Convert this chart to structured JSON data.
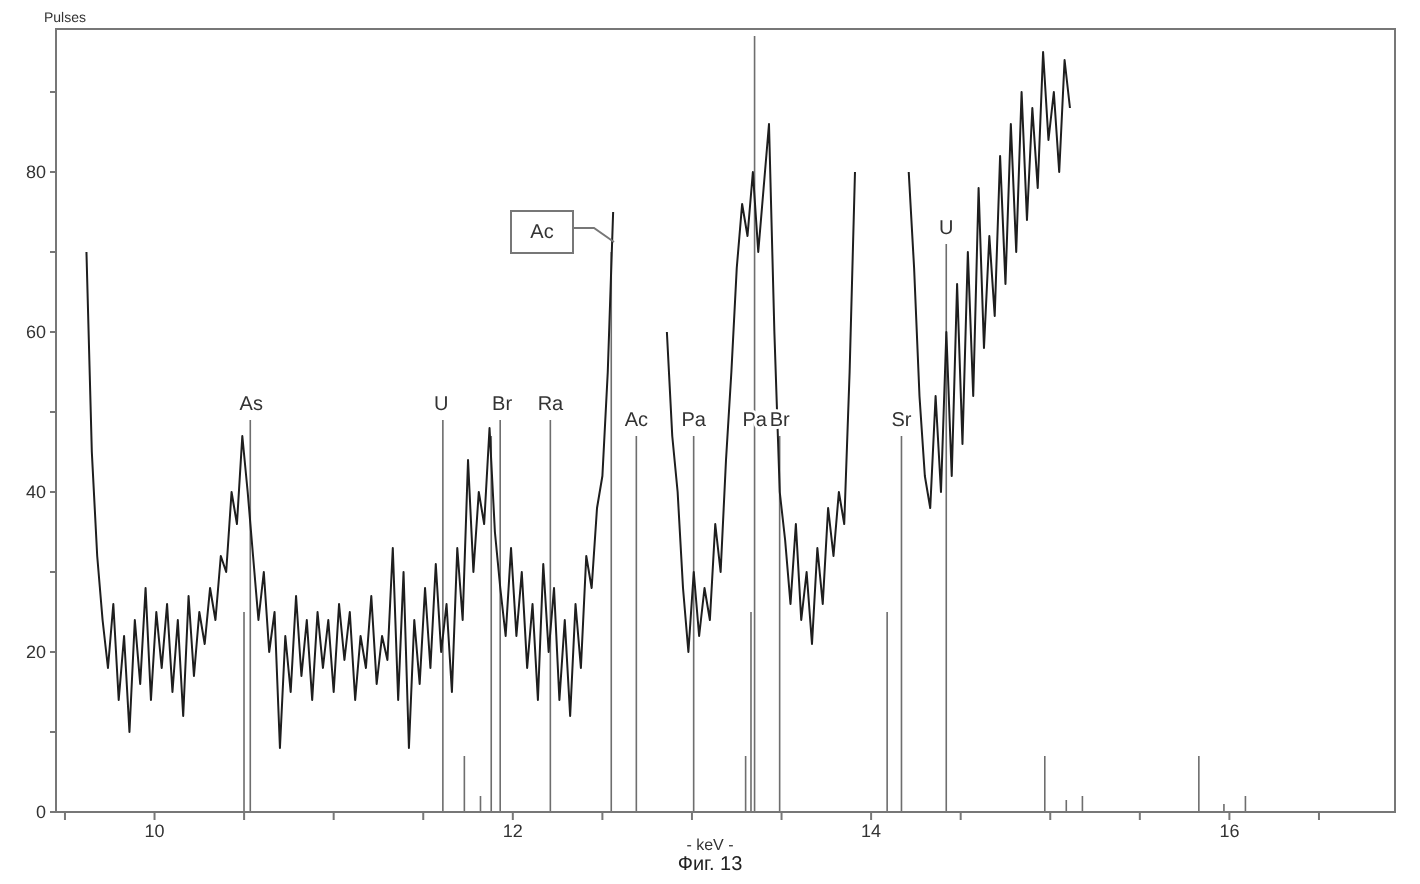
{
  "chart_data": {
    "type": "line",
    "title": "Фиг. 13",
    "xlabel": "- keV -",
    "ylabel": "Pulses",
    "xlim": [
      9.45,
      16.93
    ],
    "xticks": [
      {
        "value": 9.5,
        "label": null
      },
      10,
      {
        "value": 10.5,
        "label": null
      },
      {
        "value": 11,
        "label": null
      },
      {
        "value": 11.5,
        "label": null
      },
      12,
      {
        "value": 12.5,
        "label": null
      },
      {
        "value": 13,
        "label": null
      },
      {
        "value": 13.5,
        "label": null
      },
      14,
      {
        "value": 14.5,
        "label": null
      },
      {
        "value": 15,
        "label": null
      },
      {
        "value": 15.5,
        "label": null
      },
      16,
      {
        "value": 16.5,
        "label": null
      }
    ],
    "ylim": [
      0,
      98
    ],
    "yticks": [
      0,
      {
        "value": 10,
        "label": null
      },
      20,
      {
        "value": 30,
        "label": null
      },
      40,
      {
        "value": 50,
        "label": null
      },
      60,
      {
        "value": 70,
        "label": null
      },
      80,
      {
        "value": 90,
        "label": null
      }
    ],
    "grid": false,
    "legend": false,
    "marker": "none",
    "line_style": "solid",
    "series": [
      {
        "color": "#1e1e1e",
        "x": [
          9.62,
          9.65,
          9.68,
          9.71,
          9.74,
          9.77,
          9.8,
          9.83,
          9.86,
          9.89,
          9.92,
          9.95,
          9.98,
          10.01,
          10.04,
          10.07,
          10.1,
          10.13,
          10.16,
          10.19,
          10.22,
          10.25,
          10.28,
          10.31,
          10.34,
          10.37,
          10.4,
          10.43,
          10.46,
          10.49,
          10.52,
          10.55,
          10.58,
          10.61,
          10.64,
          10.67,
          10.7,
          10.73,
          10.76,
          10.79,
          10.82,
          10.85,
          10.88,
          10.91,
          10.94,
          10.97,
          11.0,
          11.03,
          11.06,
          11.09,
          11.12,
          11.15,
          11.18,
          11.21,
          11.24,
          11.27,
          11.3,
          11.33,
          11.36,
          11.39,
          11.42,
          11.45,
          11.48,
          11.51,
          11.54,
          11.57,
          11.6,
          11.63,
          11.66,
          11.69,
          11.72,
          11.75,
          11.78,
          11.81,
          11.84,
          11.87,
          11.9,
          11.93,
          11.96,
          11.99,
          12.02,
          12.05,
          12.08,
          12.11,
          12.14,
          12.17,
          12.2,
          12.23,
          12.26,
          12.29,
          12.32,
          12.35,
          12.38,
          12.41,
          12.44,
          12.47,
          12.5,
          12.53,
          12.56,
          12.58,
          12.62,
          12.83,
          12.86,
          12.89,
          12.92,
          12.95,
          12.98,
          13.01,
          13.04,
          13.07,
          13.1,
          13.13,
          13.16,
          13.19,
          13.22,
          13.25,
          13.28,
          13.31,
          13.34,
          13.37,
          13.4,
          13.43,
          13.46,
          13.49,
          13.52,
          13.55,
          13.58,
          13.61,
          13.64,
          13.67,
          13.7,
          13.73,
          13.76,
          13.79,
          13.82,
          13.85,
          13.88,
          13.91,
          13.94,
          14.18,
          14.21,
          14.24,
          14.27,
          14.3,
          14.33,
          14.36,
          14.39,
          14.42,
          14.45,
          14.48,
          14.51,
          14.54,
          14.57,
          14.6,
          14.63,
          14.66,
          14.69,
          14.72,
          14.75,
          14.78,
          14.81,
          14.84,
          14.87,
          14.9,
          14.93,
          14.96,
          14.99,
          15.02,
          15.05,
          15.08,
          15.11
        ],
        "values": [
          70,
          45,
          32,
          24,
          18,
          26,
          14,
          22,
          10,
          24,
          16,
          28,
          14,
          25,
          18,
          26,
          15,
          24,
          12,
          27,
          17,
          25,
          21,
          28,
          24,
          32,
          30,
          40,
          36,
          47,
          40,
          32,
          24,
          30,
          20,
          25,
          8,
          22,
          15,
          27,
          17,
          24,
          14,
          25,
          18,
          24,
          15,
          26,
          19,
          25,
          14,
          22,
          18,
          27,
          16,
          22,
          19,
          33,
          14,
          30,
          8,
          24,
          16,
          28,
          18,
          31,
          20,
          26,
          15,
          33,
          24,
          44,
          30,
          40,
          36,
          48,
          35,
          28,
          22,
          33,
          22,
          30,
          18,
          26,
          14,
          31,
          20,
          28,
          14,
          24,
          12,
          26,
          18,
          32,
          28,
          38,
          42,
          55,
          75,
          null,
          null,
          null,
          60,
          47,
          40,
          28,
          20,
          30,
          22,
          28,
          24,
          36,
          30,
          44,
          55,
          68,
          76,
          72,
          80,
          70,
          78,
          86,
          60,
          40,
          34,
          26,
          36,
          24,
          30,
          21,
          33,
          26,
          38,
          32,
          40,
          36,
          55,
          80,
          null,
          null,
          80,
          68,
          52,
          42,
          38,
          52,
          40,
          60,
          42,
          66,
          46,
          70,
          52,
          78,
          58,
          72,
          62,
          82,
          66,
          86,
          70,
          90,
          74,
          88,
          78,
          95,
          84,
          90,
          80,
          94,
          88
        ]
      },
      {
        "type": "bar",
        "color": "#6e6e6e",
        "x": [
          10.5,
          10.535,
          11.61,
          11.73,
          11.82,
          11.88,
          11.93,
          12.21,
          12.55,
          12.69,
          13.01,
          13.3,
          13.33,
          13.35,
          13.49,
          14.09,
          14.17,
          14.42,
          14.97,
          15.09,
          15.18,
          15.83,
          15.97,
          16.09
        ],
        "values": [
          25,
          49,
          49,
          7,
          2,
          47,
          49,
          49,
          70,
          47,
          47,
          7,
          25,
          97,
          47,
          25,
          47,
          71,
          7,
          1.5,
          2,
          7,
          1,
          2
        ]
      }
    ],
    "annotations": [
      "Ac",
      {
        "text": "As",
        "x": 10.54,
        "y": 49
      },
      {
        "text": "U",
        "x": 11.6,
        "y": 49
      },
      {
        "text": "Br",
        "x": 11.94,
        "y": 49
      },
      {
        "text": "Ra",
        "x": 12.21,
        "y": 49
      },
      {
        "text": "Ac",
        "x": 12.69,
        "y": 47
      },
      {
        "text": "Pa",
        "x": 13.01,
        "y": 47
      },
      {
        "text": "Pa",
        "x": 13.35,
        "y": 47
      },
      {
        "text": "Br",
        "x": 13.49,
        "y": 47
      },
      {
        "text": "Sr",
        "x": 14.17,
        "y": 47
      },
      {
        "text": "U",
        "x": 14.42,
        "y": 71
      }
    ]
  }
}
